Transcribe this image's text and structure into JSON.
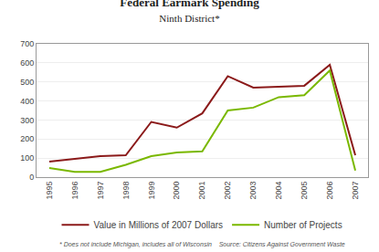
{
  "chart_data": {
    "type": "line",
    "title": "Federal Earmark Spending",
    "subtitle": "Ninth District*",
    "x": [
      1995,
      1996,
      1997,
      1998,
      1999,
      2000,
      2001,
      2002,
      2003,
      2004,
      2005,
      2006,
      2007
    ],
    "series": [
      {
        "name": "Value in Millions of 2007 Dollars",
        "color": "#8B1A1A",
        "values": [
          82,
          95,
          110,
          115,
          290,
          260,
          335,
          530,
          470,
          475,
          480,
          590,
          115
        ]
      },
      {
        "name": "Number of Projects",
        "color": "#7AB800",
        "values": [
          48,
          28,
          28,
          65,
          110,
          130,
          135,
          350,
          365,
          420,
          430,
          560,
          35
        ]
      }
    ],
    "xlim": [
      1994.5,
      2007.5
    ],
    "xticks": [
      1995,
      1996,
      1997,
      1998,
      1999,
      2000,
      2001,
      2002,
      2003,
      2004,
      2005,
      2006,
      2007
    ],
    "ylim": [
      0,
      700
    ],
    "yticks": [
      0,
      100,
      200,
      300,
      400,
      500,
      600,
      700
    ],
    "grid": true,
    "legend": "bottom",
    "annotations": [
      "* Does not include Michigan, includes all of Wisconsin    Source: Citizens Against Government Waste"
    ]
  }
}
